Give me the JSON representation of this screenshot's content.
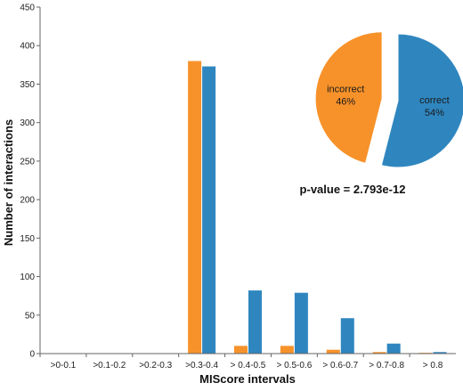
{
  "chart_data": [
    {
      "type": "bar",
      "xlabel": "MIScore intervals",
      "ylabel": "Number of interactions",
      "ylim": [
        0,
        450
      ],
      "yticks": [
        0,
        50,
        100,
        150,
        200,
        250,
        300,
        350,
        400,
        450
      ],
      "grid": false,
      "legend": "none",
      "categories": [
        ">0-0.1",
        ">0.1-0.2",
        ">0.2-0.3",
        ">0.3-0.4",
        "> 0.4-0.5",
        "> 0.5-0.6",
        "> 0.6-0.7",
        "> 0.7-0.8",
        "> 0.8"
      ],
      "series": [
        {
          "key": "incorrect",
          "color": "#f7922a",
          "values": [
            0,
            0,
            0,
            380,
            10,
            10,
            5,
            2,
            1
          ]
        },
        {
          "key": "correct",
          "color": "#2f86bf",
          "values": [
            0,
            0,
            0,
            373,
            82,
            79,
            46,
            13,
            2
          ]
        }
      ]
    },
    {
      "type": "pie",
      "slices": [
        {
          "label": "correct",
          "value": 54,
          "value_text": "54%",
          "color": "#2f86bf"
        },
        {
          "label": "incorrect",
          "value": 46,
          "value_text": "46%",
          "color": "#f7922a"
        }
      ]
    }
  ],
  "annotation": "p-value = 2.793e-12"
}
